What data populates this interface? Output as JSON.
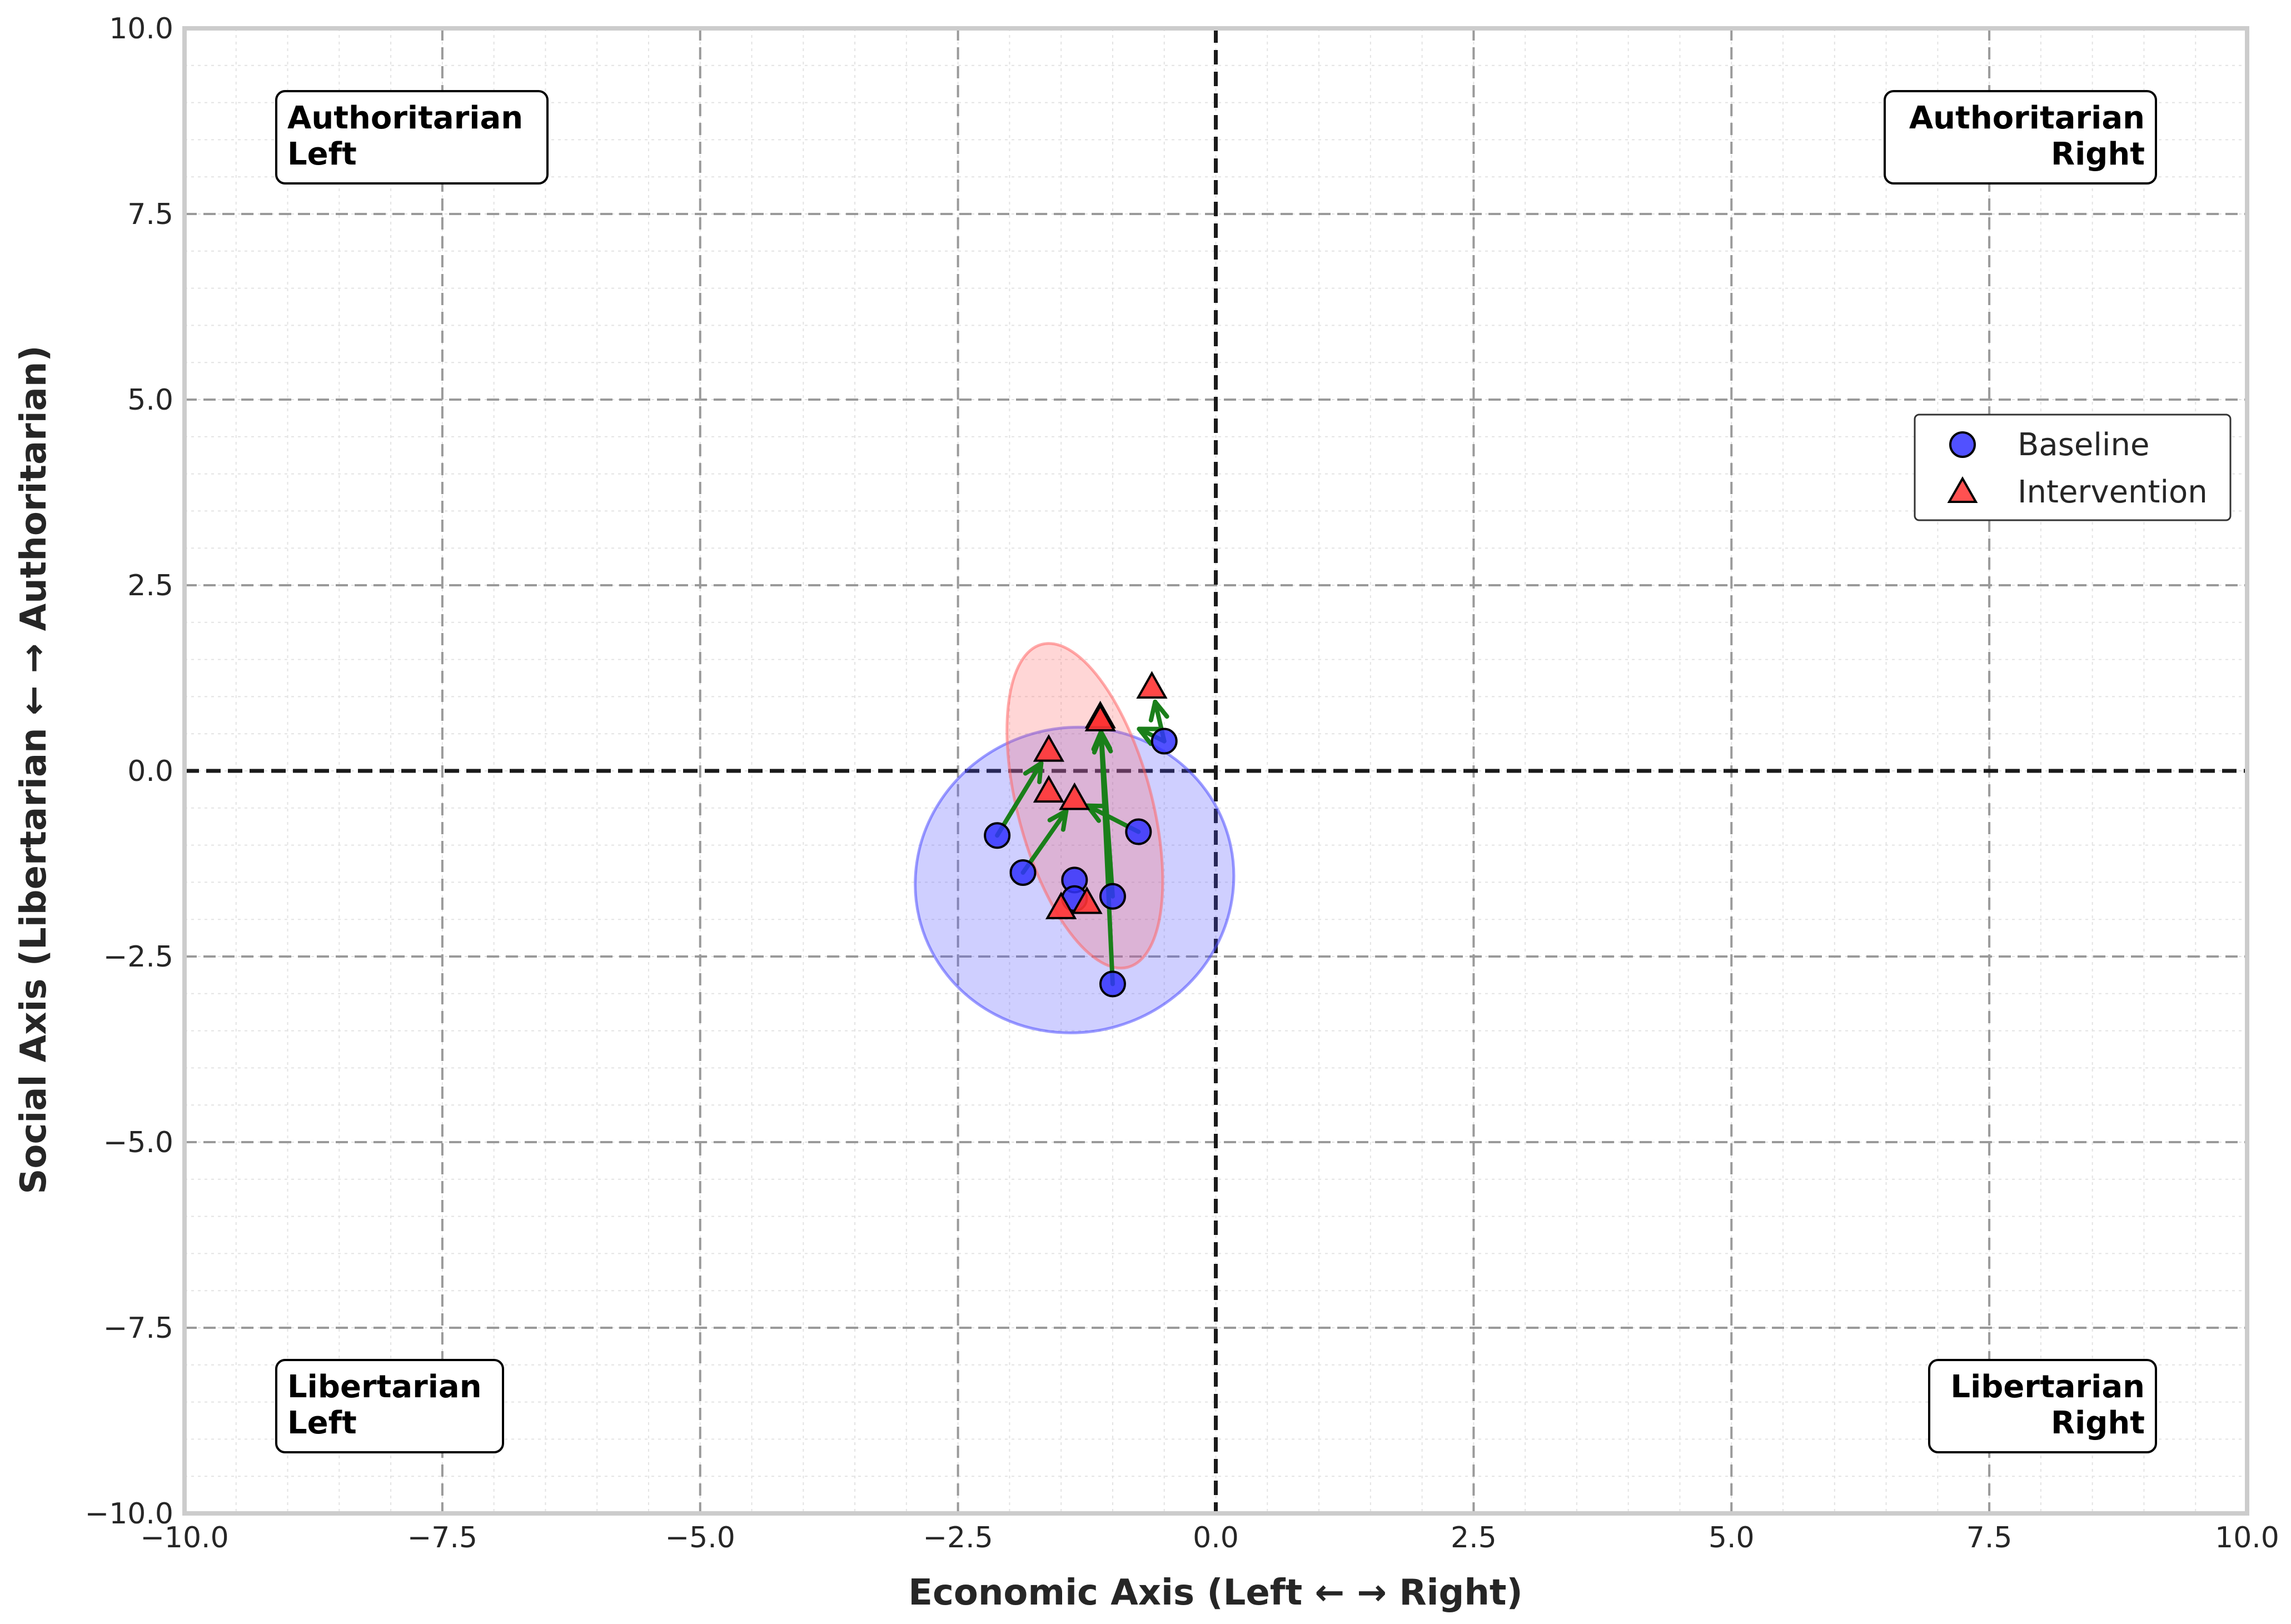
{
  "chart_data": {
    "type": "scatter",
    "xlabel": "Economic Axis (Left ← → Right)",
    "ylabel": "Social Axis (Libertarian ← → Authoritarian)",
    "xlim": [
      -10,
      10
    ],
    "ylim": [
      -10,
      10
    ],
    "xticks": [
      -10,
      -7.5,
      -5,
      -2.5,
      0,
      2.5,
      5,
      7.5,
      10
    ],
    "yticks": [
      -10,
      -7.5,
      -5,
      -2.5,
      0,
      2.5,
      5,
      7.5,
      10
    ],
    "xtick_labels": [
      "−10.0",
      "−7.5",
      "−5.0",
      "−2.5",
      "0.0",
      "2.5",
      "5.0",
      "7.5",
      "10.0"
    ],
    "ytick_labels": [
      "−10.0",
      "−7.5",
      "−5.0",
      "−2.5",
      "0.0",
      "2.5",
      "5.0",
      "7.5",
      "10.0"
    ],
    "grid": true,
    "legend_position": "right",
    "quadrant_labels": [
      {
        "id": "authoritarian-left",
        "lines": [
          "Authoritarian",
          "Left"
        ],
        "corner": "top-left"
      },
      {
        "id": "authoritarian-right",
        "lines": [
          "Authoritarian",
          "Right"
        ],
        "corner": "top-right"
      },
      {
        "id": "libertarian-left",
        "lines": [
          "Libertarian",
          "Left"
        ],
        "corner": "bottom-left"
      },
      {
        "id": "libertarian-right",
        "lines": [
          "Libertarian",
          "Right"
        ],
        "corner": "bottom-right"
      }
    ],
    "series": [
      {
        "name": "Baseline",
        "marker": "circle",
        "color": "#3333ff",
        "points": [
          [
            -2.12,
            -0.87
          ],
          [
            -1.87,
            -1.37
          ],
          [
            -1.37,
            -1.47
          ],
          [
            -1.37,
            -1.72
          ],
          [
            -1.0,
            -1.69
          ],
          [
            -0.75,
            -0.82
          ],
          [
            -0.5,
            0.4
          ],
          [
            -1.0,
            -2.87
          ]
        ]
      },
      {
        "name": "Intervention",
        "marker": "triangle",
        "color": "#ff3333",
        "points": [
          [
            -1.62,
            0.27
          ],
          [
            -1.62,
            -0.28
          ],
          [
            -1.37,
            -0.38
          ],
          [
            -1.5,
            -1.85
          ],
          [
            -1.25,
            -1.78
          ],
          [
            -1.12,
            0.72
          ],
          [
            -0.62,
            1.12
          ],
          [
            -1.12,
            0.68
          ]
        ]
      }
    ],
    "shifts": [
      {
        "from": [
          -2.12,
          -0.87
        ],
        "to": [
          -1.62,
          0.27
        ]
      },
      {
        "from": [
          -1.87,
          -1.37
        ],
        "to": [
          -1.37,
          -0.38
        ]
      },
      {
        "from": [
          -0.75,
          -0.82
        ],
        "to": [
          -1.37,
          -0.38
        ]
      },
      {
        "from": [
          -1.0,
          -1.69
        ],
        "to": [
          -1.12,
          0.68
        ]
      },
      {
        "from": [
          -1.0,
          -2.87
        ],
        "to": [
          -1.12,
          0.72
        ]
      },
      {
        "from": [
          -0.5,
          0.4
        ],
        "to": [
          -0.62,
          1.12
        ]
      },
      {
        "from": [
          -0.5,
          0.4
        ],
        "to": [
          -0.87,
          0.65
        ]
      }
    ],
    "shift_color": "#1a7f1a",
    "confidence_ellipses": [
      {
        "series": "Baseline",
        "center": [
          -1.37,
          -1.47
        ],
        "semi_axes": [
          1.55,
          2.05
        ],
        "rotation_deg": -16,
        "color": "#4d4dff"
      },
      {
        "series": "Intervention",
        "center": [
          -1.27,
          -0.47
        ],
        "semi_axes": [
          0.65,
          2.25
        ],
        "rotation_deg": -15,
        "color": "#ff6666"
      }
    ]
  }
}
